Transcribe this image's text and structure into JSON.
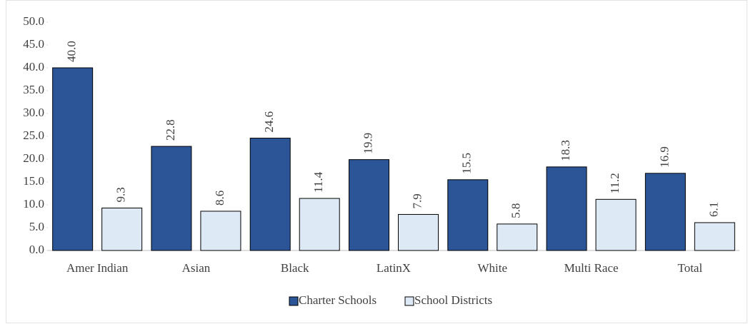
{
  "chart_data": {
    "type": "bar",
    "categories": [
      "Amer Indian",
      "Asian",
      "Black",
      "LatinX",
      "White",
      "Multi Race",
      "Total"
    ],
    "series": [
      {
        "name": "Charter Schools",
        "color": "#2b5597",
        "values": [
          40.0,
          22.8,
          24.6,
          19.9,
          15.5,
          18.3,
          16.9
        ],
        "value_labels": [
          "40.0",
          "22.8",
          "24.6",
          "19.9",
          "15.5",
          "18.3",
          "16.9"
        ]
      },
      {
        "name": "School Districts",
        "color": "#dde9f5",
        "values": [
          9.3,
          8.6,
          11.4,
          7.9,
          5.8,
          11.2,
          6.1
        ],
        "value_labels": [
          "9.3",
          "8.6",
          "11.4",
          "7.9",
          "5.8",
          "11.2",
          "6.1"
        ]
      }
    ],
    "ylim": [
      0,
      50
    ],
    "yticks": [
      {
        "value": 0,
        "label": "0.0"
      },
      {
        "value": 5,
        "label": "5.0"
      },
      {
        "value": 10,
        "label": "10.0"
      },
      {
        "value": 15,
        "label": "15.0"
      },
      {
        "value": 20,
        "label": "20.0"
      },
      {
        "value": 25,
        "label": "25.0"
      },
      {
        "value": 30,
        "label": "30.0"
      },
      {
        "value": 35,
        "label": "35.0"
      },
      {
        "value": 40,
        "label": "40.0"
      },
      {
        "value": 45,
        "label": "45.0"
      },
      {
        "value": 50,
        "label": "50.0"
      }
    ],
    "grid": false,
    "legend": "bottom"
  }
}
